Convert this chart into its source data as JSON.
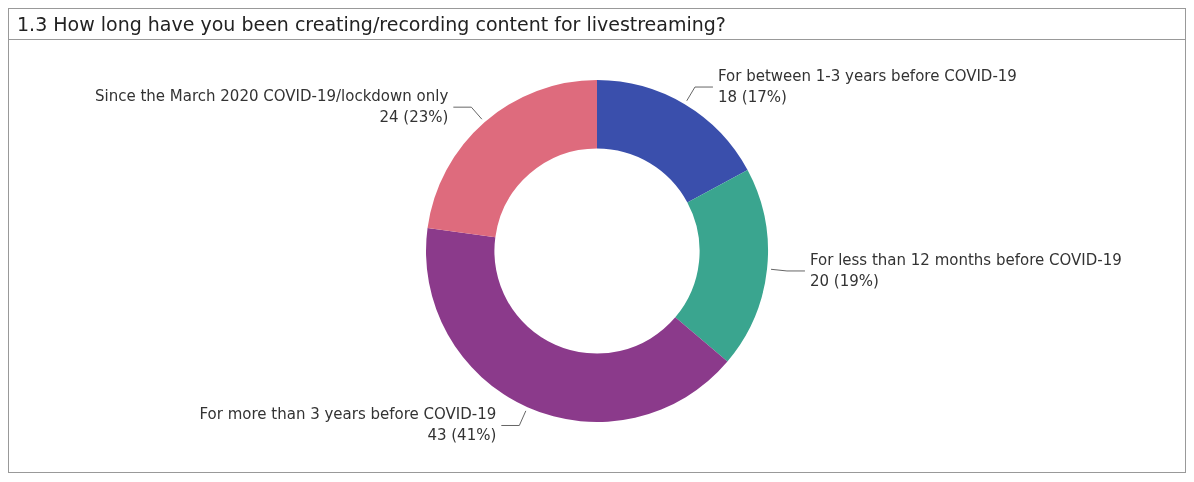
{
  "chart_data": {
    "type": "donut",
    "title": "1.3 How long have you been creating/recording content for livestreaming?",
    "categories": [
      "For between 1-3 years before COVID-19",
      "For less than 12 months before COVID-19",
      "For more than 3 years before COVID-19",
      "Since the March 2020 COVID-19/lockdown only"
    ],
    "values": [
      18,
      20,
      43,
      24
    ],
    "colors": [
      "#3a4fac",
      "#3aa58f",
      "#8b3a8b",
      "#de6b7d"
    ],
    "value_labels": [
      "18 (17%)",
      "20 (19%)",
      "43 (41%)",
      "24 (23%)"
    ]
  }
}
